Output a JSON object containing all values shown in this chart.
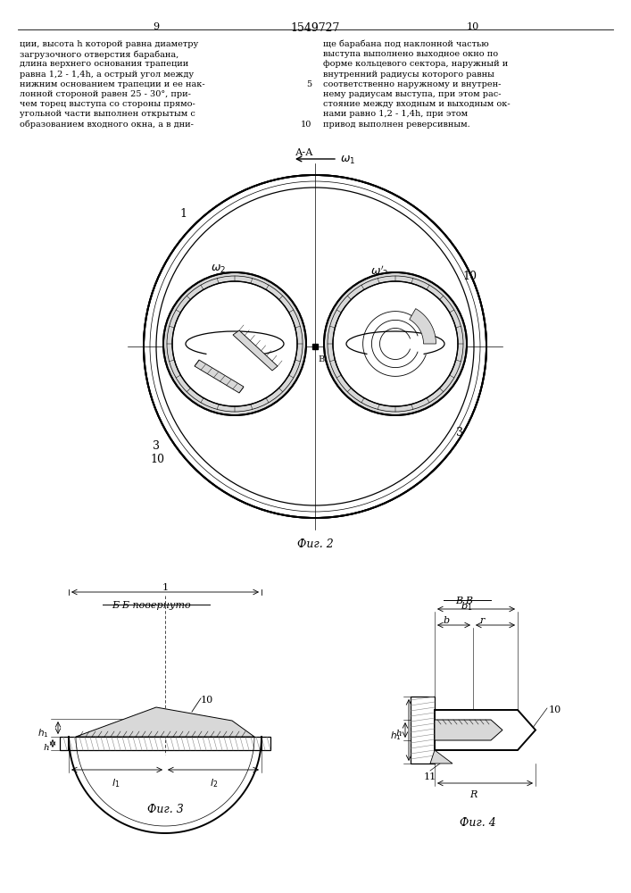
{
  "page_numbers": [
    "9",
    "1549727",
    "10"
  ],
  "text_left": [
    "ции, высота h которой равна диаметру",
    "загрузочного отверстия барабана,",
    "длина верхнего основания трапеции",
    "равна 1,2 - 1,4h, а острый угол между",
    "нижним основанием трапеции и ее нак-",
    "лонной стороной равен 25 - 30°, при-",
    "чем торец выступа со стороны прямо-",
    "угольной части выполнен открытым с",
    "образованием входного окна, а в дни-"
  ],
  "text_right": [
    "ще барабана под наклонной частью",
    "выступа выполнено выходное окно по",
    "форме кольцевого сектора, наружный и",
    "внутренний радиусы которого равны",
    "соответственно наружному и внутрен-",
    "нему радиусам выступа, при этом рас-",
    "стояние между входным и выходным ок-",
    "нами равно 1,2 - 1,4h, при этом",
    "привод выполнен реверсивным."
  ],
  "fig2_label": "Фиг. 2",
  "fig3_label": "Фиг. 3",
  "fig4_label": "Фиг. 4",
  "section_bb_label": "Б-Б повернуто",
  "section_vv_label": "В-В",
  "section_aa_label": "А-А"
}
